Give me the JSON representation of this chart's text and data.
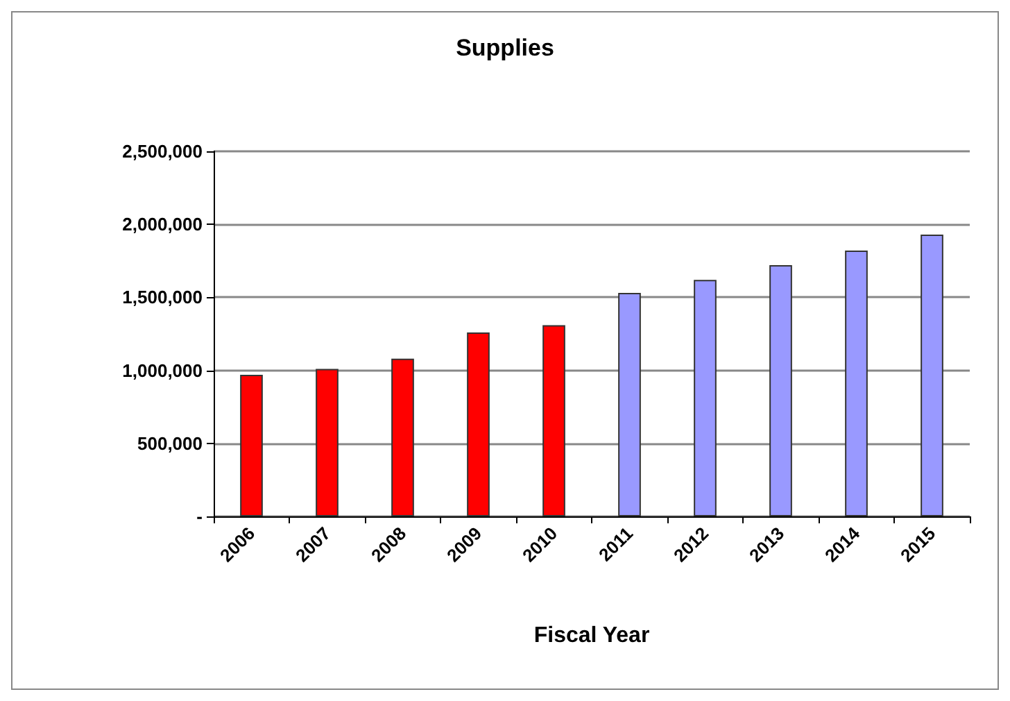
{
  "chart_data": {
    "type": "bar",
    "title": "Supplies",
    "xlabel": "Fiscal Year",
    "categories": [
      "2006",
      "2007",
      "2008",
      "2009",
      "2010",
      "2011",
      "2012",
      "2013",
      "2014",
      "2015"
    ],
    "values": [
      970000,
      1010000,
      1080000,
      1260000,
      1310000,
      1530000,
      1620000,
      1720000,
      1820000,
      1930000
    ],
    "colors": [
      "#ff0000",
      "#ff0000",
      "#ff0000",
      "#ff0000",
      "#ff0000",
      "#9999ff",
      "#9999ff",
      "#9999ff",
      "#9999ff",
      "#9999ff"
    ],
    "ylim": [
      0,
      2500000
    ],
    "yticks": [
      {
        "value": 0,
        "label": "-"
      },
      {
        "value": 500000,
        "label": "500,000"
      },
      {
        "value": 1000000,
        "label": "1,000,000"
      },
      {
        "value": 1500000,
        "label": "1,500,000"
      },
      {
        "value": 2000000,
        "label": "2,000,000"
      },
      {
        "value": 2500000,
        "label": "2,500,000"
      }
    ],
    "grid": "y"
  }
}
